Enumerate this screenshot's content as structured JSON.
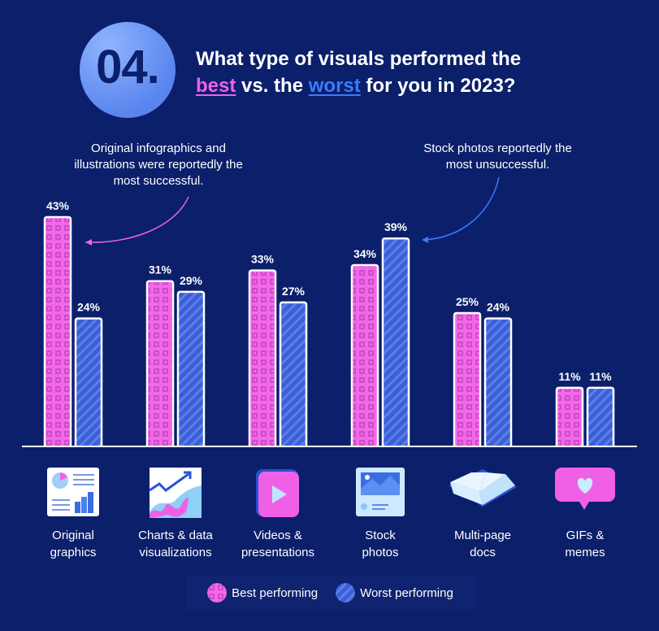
{
  "header": {
    "number": "04.",
    "title_line1": "What type of visuals performed the",
    "title_best": "best",
    "title_vs": " vs. the ",
    "title_worst": "worst",
    "title_end": " for you in 2023?"
  },
  "annotations": {
    "best": "Original infographics and illustrations were reportedly the most successful.",
    "worst": "Stock photos reportedly the most unsuccessful."
  },
  "colors": {
    "background": "#0b1f6b",
    "best": "#f060e6",
    "worst": "#3b5fd6",
    "bar_outline": "#ffffff"
  },
  "legend": {
    "best": "Best performing",
    "worst": "Worst performing"
  },
  "categories": [
    {
      "line1": "Original",
      "line2": "graphics",
      "icon": "infographic-icon",
      "best_label": "43%",
      "worst_label": "24%",
      "best": 43,
      "worst": 24
    },
    {
      "line1": "Charts & data",
      "line2": "visualizations",
      "icon": "chart-trend-icon",
      "best_label": "31%",
      "worst_label": "29%",
      "best": 31,
      "worst": 29
    },
    {
      "line1": "Videos &",
      "line2": "presentations",
      "icon": "video-play-icon",
      "best_label": "33%",
      "worst_label": "27%",
      "best": 33,
      "worst": 27
    },
    {
      "line1": "Stock",
      "line2": "photos",
      "icon": "photo-icon",
      "best_label": "34%",
      "worst_label": "39%",
      "best": 34,
      "worst": 39
    },
    {
      "line1": "Multi-page",
      "line2": "docs",
      "icon": "open-book-icon",
      "best_label": "25%",
      "worst_label": "24%",
      "best": 25,
      "worst": 24
    },
    {
      "line1": "GIFs &",
      "line2": "memes",
      "icon": "heart-bubble-icon",
      "best_label": "11%",
      "worst_label": "11%",
      "best": 11,
      "worst": 11
    }
  ],
  "chart_data": {
    "type": "bar",
    "title": "What type of visuals performed the best vs. the worst for you in 2023?",
    "categories": [
      "Original graphics",
      "Charts & data visualizations",
      "Videos & presentations",
      "Stock photos",
      "Multi-page docs",
      "GIFs & memes"
    ],
    "series": [
      {
        "name": "Best performing",
        "values": [
          43,
          31,
          33,
          34,
          25,
          11
        ]
      },
      {
        "name": "Worst performing",
        "values": [
          24,
          29,
          27,
          39,
          24,
          11
        ]
      }
    ],
    "unit": "%",
    "ylim": [
      0,
      50
    ],
    "grid": false,
    "legend_position": "bottom"
  }
}
